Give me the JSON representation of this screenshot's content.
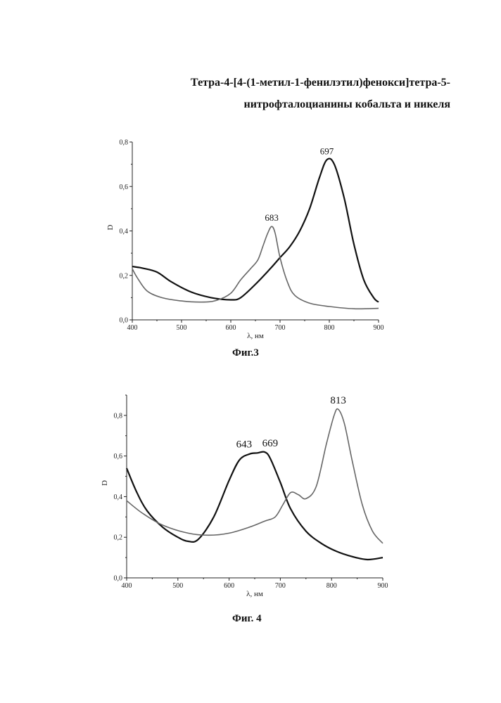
{
  "title_line1": "Тетра-4-[4-(1-метил-1-фенилэтил)фенокси]тетра-5-",
  "title_line2": "нитрофталоцианины кобальта и никеля",
  "chart_data": [
    {
      "type": "line",
      "caption": "Фиг.3",
      "xlabel": "λ, нм",
      "ylabel": "D",
      "xlim": [
        400,
        900
      ],
      "ylim": [
        0,
        0.8
      ],
      "xticks": [
        "400",
        "500",
        "600",
        "700",
        "800",
        "900"
      ],
      "yticks": [
        "0,0",
        "0,2",
        "0,4",
        "0,6",
        "0,8"
      ],
      "grid": false,
      "series": [
        {
          "color": "#111111",
          "width": 2.2,
          "x": [
            400,
            420,
            450,
            480,
            520,
            560,
            600,
            620,
            650,
            680,
            700,
            720,
            740,
            760,
            780,
            795,
            810,
            830,
            850,
            870,
            890,
            900
          ],
          "y": [
            0.24,
            0.233,
            0.215,
            0.17,
            0.125,
            0.1,
            0.09,
            0.1,
            0.16,
            0.23,
            0.28,
            0.33,
            0.4,
            0.5,
            0.64,
            0.72,
            0.7,
            0.55,
            0.34,
            0.18,
            0.1,
            0.08
          ]
        },
        {
          "color": "#666666",
          "width": 1.6,
          "x": [
            400,
            410,
            430,
            460,
            500,
            540,
            570,
            600,
            620,
            640,
            655,
            665,
            675,
            683,
            690,
            700,
            715,
            730,
            760,
            800,
            850,
            900
          ],
          "y": [
            0.23,
            0.19,
            0.13,
            0.1,
            0.085,
            0.08,
            0.087,
            0.12,
            0.18,
            0.23,
            0.27,
            0.33,
            0.39,
            0.42,
            0.39,
            0.28,
            0.17,
            0.11,
            0.075,
            0.06,
            0.05,
            0.052
          ]
        }
      ],
      "annotations": [
        {
          "text": "697",
          "x": 795,
          "y": 0.72
        },
        {
          "text": "683",
          "x": 683,
          "y": 0.42
        }
      ]
    },
    {
      "type": "line",
      "caption": "Фиг. 4",
      "xlabel": "λ, нм",
      "ylabel": "D",
      "xlim": [
        400,
        900
      ],
      "ylim": [
        0,
        0.9
      ],
      "xticks": [
        "400",
        "500",
        "600",
        "700",
        "800",
        "900"
      ],
      "yticks": [
        "0,0",
        "0,2",
        "0,4",
        "0,6",
        "0,8"
      ],
      "grid": false,
      "series": [
        {
          "color": "#111111",
          "width": 2.2,
          "x": [
            400,
            420,
            440,
            470,
            500,
            520,
            540,
            570,
            600,
            620,
            640,
            655,
            669,
            680,
            700,
            720,
            750,
            780,
            810,
            840,
            870,
            900
          ],
          "y": [
            0.54,
            0.42,
            0.33,
            0.25,
            0.2,
            0.18,
            0.19,
            0.3,
            0.48,
            0.58,
            0.61,
            0.615,
            0.62,
            0.59,
            0.47,
            0.34,
            0.23,
            0.17,
            0.13,
            0.105,
            0.09,
            0.1
          ]
        },
        {
          "color": "#666666",
          "width": 1.6,
          "x": [
            400,
            430,
            470,
            520,
            560,
            600,
            640,
            670,
            690,
            705,
            720,
            735,
            750,
            770,
            790,
            805,
            813,
            825,
            840,
            860,
            880,
            900
          ],
          "y": [
            0.38,
            0.32,
            0.26,
            0.22,
            0.21,
            0.22,
            0.25,
            0.28,
            0.3,
            0.36,
            0.42,
            0.41,
            0.39,
            0.45,
            0.66,
            0.8,
            0.83,
            0.76,
            0.58,
            0.36,
            0.23,
            0.17
          ]
        }
      ],
      "annotations": [
        {
          "text": "643",
          "x": 643,
          "y": 0.615
        },
        {
          "text": "669",
          "x": 669,
          "y": 0.62
        },
        {
          "text": "813",
          "x": 813,
          "y": 0.83
        }
      ]
    }
  ]
}
